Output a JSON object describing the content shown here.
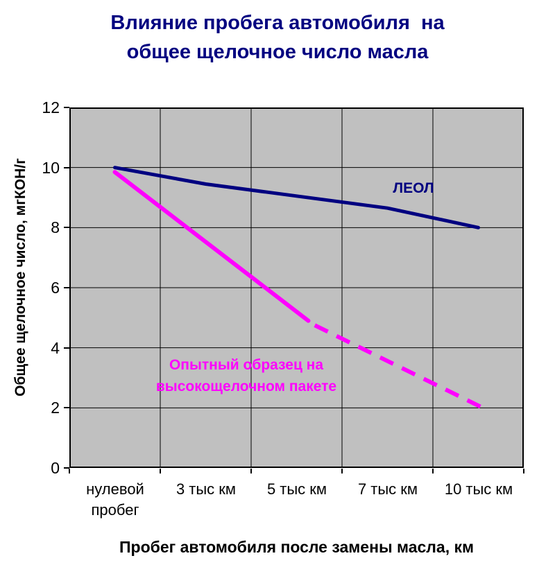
{
  "chart_data": {
    "type": "line",
    "title": "Влияние пробега автомобиля на общее щелочное число масла",
    "title_lines": [
      "Влияние пробега автомобиля  на",
      "общее щелочное число масла"
    ],
    "categories": [
      "нулевой пробег",
      "3 тыс км",
      "5 тыс км",
      "7 тыс км",
      "10 тыс км"
    ],
    "xlabel": "Пробег автомобиля после замены масла, км",
    "ylabel": "Общее щелочное число, мгКОН/г",
    "ylim": [
      0,
      12
    ],
    "y_ticks": [
      0,
      2,
      4,
      6,
      8,
      10,
      12
    ],
    "grid": true,
    "legend_position": "inline-annotations",
    "colors": {
      "title": "#000080",
      "plot_background": "#c0c0c0",
      "gridline": "#000000",
      "series_leol": "#000080",
      "series_experimental": "#ff00ff"
    },
    "series": [
      {
        "name": "ЛЕОЛ",
        "color": "#000080",
        "width": 5,
        "segments": [
          {
            "style": "solid",
            "x": [
              0,
              1,
              2,
              3,
              4
            ],
            "values": [
              10,
              9.45,
              9.05,
              8.65,
              8.0
            ]
          }
        ]
      },
      {
        "name": "Опытный образец на высокощелочном пакете",
        "color": "#ff00ff",
        "width": 6,
        "segments": [
          {
            "style": "solid",
            "x": [
              0,
              2.13
            ],
            "values": [
              9.85,
              4.9
            ]
          },
          {
            "style": "dashed",
            "x": [
              2.2,
              4.05
            ],
            "values": [
              4.75,
              2.0
            ]
          }
        ]
      }
    ],
    "annotations": [
      {
        "text": "ЛЕОЛ",
        "x": 3.29,
        "y": 9.29,
        "color": "#000080"
      },
      {
        "text": "Опытный образец на",
        "x": 1.45,
        "y": 3.41,
        "color": "#ff00ff"
      },
      {
        "text": "высокощелочном пакете",
        "x": 1.45,
        "y": 2.7,
        "color": "#ff00ff"
      }
    ]
  }
}
